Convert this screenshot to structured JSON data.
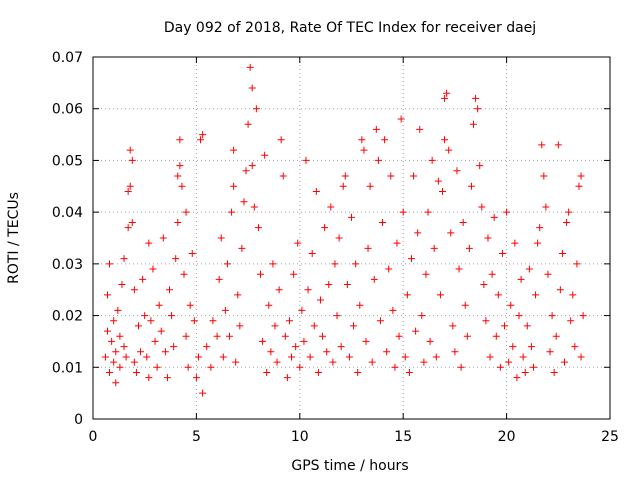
{
  "chart_data": {
    "type": "scatter",
    "title": "Day 092 of 2018, Rate Of TEC Index for receiver daej",
    "xlabel": "GPS time / hours",
    "ylabel": "ROTI / TECUs",
    "xlim": [
      0,
      25
    ],
    "ylim": [
      0,
      0.07
    ],
    "xticks": [
      0,
      5,
      10,
      15,
      20,
      25
    ],
    "yticks": [
      0,
      0.01,
      0.02,
      0.03,
      0.04,
      0.05,
      0.06,
      0.07
    ],
    "xtick_labels": [
      "0",
      "5",
      "10",
      "15",
      "20",
      "25"
    ],
    "ytick_labels": [
      "0",
      "0.01",
      "0.02",
      "0.03",
      "0.04",
      "0.05",
      "0.06",
      "0.07"
    ],
    "grid": true,
    "marker": "+",
    "color": "#ff0000",
    "series": [
      {
        "points": [
          [
            0.6,
            0.012
          ],
          [
            0.7,
            0.017
          ],
          [
            0.7,
            0.024
          ],
          [
            0.8,
            0.03
          ],
          [
            0.8,
            0.009
          ],
          [
            0.9,
            0.015
          ],
          [
            1.0,
            0.011
          ],
          [
            1.0,
            0.019
          ],
          [
            1.1,
            0.007
          ],
          [
            1.1,
            0.013
          ],
          [
            1.2,
            0.021
          ],
          [
            1.3,
            0.016
          ],
          [
            1.3,
            0.01
          ],
          [
            1.4,
            0.026
          ],
          [
            1.5,
            0.014
          ],
          [
            1.5,
            0.031
          ],
          [
            1.6,
            0.012
          ],
          [
            1.7,
            0.037
          ],
          [
            1.7,
            0.044
          ],
          [
            1.8,
            0.052
          ],
          [
            1.8,
            0.045
          ],
          [
            1.9,
            0.038
          ],
          [
            1.9,
            0.05
          ],
          [
            2.0,
            0.025
          ],
          [
            2.0,
            0.011
          ],
          [
            2.1,
            0.009
          ],
          [
            2.2,
            0.018
          ],
          [
            2.3,
            0.013
          ],
          [
            2.4,
            0.027
          ],
          [
            2.5,
            0.02
          ],
          [
            2.6,
            0.012
          ],
          [
            2.7,
            0.034
          ],
          [
            2.7,
            0.008
          ],
          [
            2.8,
            0.019
          ],
          [
            2.9,
            0.029
          ],
          [
            3.0,
            0.015
          ],
          [
            3.1,
            0.01
          ],
          [
            3.2,
            0.022
          ],
          [
            3.3,
            0.017
          ],
          [
            3.4,
            0.035
          ],
          [
            3.5,
            0.013
          ],
          [
            3.6,
            0.008
          ],
          [
            3.7,
            0.025
          ],
          [
            3.8,
            0.02
          ],
          [
            3.9,
            0.014
          ],
          [
            4.0,
            0.031
          ],
          [
            4.1,
            0.038
          ],
          [
            4.1,
            0.047
          ],
          [
            4.2,
            0.054
          ],
          [
            4.2,
            0.049
          ],
          [
            4.3,
            0.045
          ],
          [
            4.4,
            0.028
          ],
          [
            4.5,
            0.016
          ],
          [
            4.5,
            0.04
          ],
          [
            4.6,
            0.01
          ],
          [
            4.7,
            0.022
          ],
          [
            4.8,
            0.032
          ],
          [
            4.9,
            0.019
          ],
          [
            5.0,
            0.008
          ],
          [
            5.1,
            0.012
          ],
          [
            5.2,
            0.054
          ],
          [
            5.3,
            0.055
          ],
          [
            5.3,
            0.005
          ],
          [
            5.5,
            0.014
          ],
          [
            5.7,
            0.01
          ],
          [
            5.8,
            0.019
          ],
          [
            6.0,
            0.016
          ],
          [
            6.1,
            0.027
          ],
          [
            6.2,
            0.035
          ],
          [
            6.3,
            0.012
          ],
          [
            6.4,
            0.021
          ],
          [
            6.5,
            0.03
          ],
          [
            6.6,
            0.016
          ],
          [
            6.7,
            0.04
          ],
          [
            6.8,
            0.052
          ],
          [
            6.8,
            0.045
          ],
          [
            6.9,
            0.011
          ],
          [
            7.0,
            0.024
          ],
          [
            7.1,
            0.018
          ],
          [
            7.2,
            0.033
          ],
          [
            7.3,
            0.042
          ],
          [
            7.4,
            0.048
          ],
          [
            7.5,
            0.057
          ],
          [
            7.6,
            0.068
          ],
          [
            7.7,
            0.064
          ],
          [
            7.7,
            0.049
          ],
          [
            7.8,
            0.041
          ],
          [
            7.9,
            0.06
          ],
          [
            8.0,
            0.037
          ],
          [
            8.1,
            0.028
          ],
          [
            8.2,
            0.015
          ],
          [
            8.3,
            0.051
          ],
          [
            8.4,
            0.009
          ],
          [
            8.5,
            0.022
          ],
          [
            8.6,
            0.013
          ],
          [
            8.7,
            0.03
          ],
          [
            8.8,
            0.018
          ],
          [
            8.9,
            0.011
          ],
          [
            9.0,
            0.025
          ],
          [
            9.1,
            0.054
          ],
          [
            9.2,
            0.047
          ],
          [
            9.3,
            0.016
          ],
          [
            9.4,
            0.008
          ],
          [
            9.5,
            0.019
          ],
          [
            9.6,
            0.012
          ],
          [
            9.7,
            0.028
          ],
          [
            9.8,
            0.014
          ],
          [
            9.9,
            0.034
          ],
          [
            10.0,
            0.01
          ],
          [
            10.1,
            0.021
          ],
          [
            10.2,
            0.015
          ],
          [
            10.3,
            0.05
          ],
          [
            10.4,
            0.025
          ],
          [
            10.5,
            0.012
          ],
          [
            10.6,
            0.032
          ],
          [
            10.7,
            0.018
          ],
          [
            10.8,
            0.044
          ],
          [
            10.9,
            0.009
          ],
          [
            11.0,
            0.023
          ],
          [
            11.1,
            0.016
          ],
          [
            11.2,
            0.037
          ],
          [
            11.3,
            0.013
          ],
          [
            11.4,
            0.026
          ],
          [
            11.5,
            0.041
          ],
          [
            11.6,
            0.011
          ],
          [
            11.7,
            0.03
          ],
          [
            11.8,
            0.02
          ],
          [
            11.9,
            0.035
          ],
          [
            12.0,
            0.014
          ],
          [
            12.1,
            0.045
          ],
          [
            12.2,
            0.047
          ],
          [
            12.3,
            0.026
          ],
          [
            12.4,
            0.012
          ],
          [
            12.5,
            0.039
          ],
          [
            12.6,
            0.018
          ],
          [
            12.7,
            0.03
          ],
          [
            12.8,
            0.009
          ],
          [
            12.9,
            0.022
          ],
          [
            13.0,
            0.054
          ],
          [
            13.1,
            0.052
          ],
          [
            13.2,
            0.015
          ],
          [
            13.3,
            0.033
          ],
          [
            13.4,
            0.045
          ],
          [
            13.5,
            0.011
          ],
          [
            13.6,
            0.027
          ],
          [
            13.7,
            0.056
          ],
          [
            13.8,
            0.05
          ],
          [
            13.9,
            0.019
          ],
          [
            14.0,
            0.038
          ],
          [
            14.1,
            0.054
          ],
          [
            14.2,
            0.013
          ],
          [
            14.3,
            0.029
          ],
          [
            14.4,
            0.047
          ],
          [
            14.5,
            0.021
          ],
          [
            14.6,
            0.01
          ],
          [
            14.7,
            0.034
          ],
          [
            14.8,
            0.016
          ],
          [
            14.9,
            0.058
          ],
          [
            15.0,
            0.04
          ],
          [
            15.1,
            0.012
          ],
          [
            15.2,
            0.024
          ],
          [
            15.3,
            0.009
          ],
          [
            15.4,
            0.031
          ],
          [
            15.5,
            0.047
          ],
          [
            15.6,
            0.017
          ],
          [
            15.7,
            0.036
          ],
          [
            15.8,
            0.056
          ],
          [
            15.9,
            0.02
          ],
          [
            16.0,
            0.011
          ],
          [
            16.1,
            0.028
          ],
          [
            16.2,
            0.04
          ],
          [
            16.3,
            0.015
          ],
          [
            16.4,
            0.05
          ],
          [
            16.5,
            0.033
          ],
          [
            16.6,
            0.012
          ],
          [
            16.7,
            0.046
          ],
          [
            16.8,
            0.024
          ],
          [
            16.9,
            0.044
          ],
          [
            17.0,
            0.054
          ],
          [
            17.0,
            0.062
          ],
          [
            17.1,
            0.063
          ],
          [
            17.2,
            0.052
          ],
          [
            17.3,
            0.036
          ],
          [
            17.4,
            0.018
          ],
          [
            17.5,
            0.013
          ],
          [
            17.6,
            0.048
          ],
          [
            17.7,
            0.029
          ],
          [
            17.8,
            0.01
          ],
          [
            17.9,
            0.038
          ],
          [
            18.0,
            0.022
          ],
          [
            18.1,
            0.016
          ],
          [
            18.2,
            0.033
          ],
          [
            18.3,
            0.045
          ],
          [
            18.4,
            0.057
          ],
          [
            18.5,
            0.062
          ],
          [
            18.6,
            0.06
          ],
          [
            18.7,
            0.049
          ],
          [
            18.8,
            0.041
          ],
          [
            18.9,
            0.026
          ],
          [
            19.0,
            0.019
          ],
          [
            19.1,
            0.035
          ],
          [
            19.2,
            0.012
          ],
          [
            19.3,
            0.028
          ],
          [
            19.4,
            0.039
          ],
          [
            19.5,
            0.016
          ],
          [
            19.6,
            0.024
          ],
          [
            19.7,
            0.01
          ],
          [
            19.8,
            0.032
          ],
          [
            19.9,
            0.018
          ],
          [
            20.0,
            0.04
          ],
          [
            20.1,
            0.011
          ],
          [
            20.2,
            0.022
          ],
          [
            20.3,
            0.014
          ],
          [
            20.4,
            0.034
          ],
          [
            20.5,
            0.008
          ],
          [
            20.6,
            0.02
          ],
          [
            20.7,
            0.027
          ],
          [
            20.8,
            0.012
          ],
          [
            20.9,
            0.009
          ],
          [
            21.0,
            0.018
          ],
          [
            21.1,
            0.029
          ],
          [
            21.2,
            0.014
          ],
          [
            21.3,
            0.01
          ],
          [
            21.4,
            0.024
          ],
          [
            21.5,
            0.034
          ],
          [
            21.6,
            0.037
          ],
          [
            21.7,
            0.053
          ],
          [
            21.8,
            0.047
          ],
          [
            21.9,
            0.041
          ],
          [
            22.0,
            0.028
          ],
          [
            22.1,
            0.013
          ],
          [
            22.2,
            0.02
          ],
          [
            22.3,
            0.009
          ],
          [
            22.4,
            0.016
          ],
          [
            22.5,
            0.053
          ],
          [
            22.6,
            0.025
          ],
          [
            22.7,
            0.032
          ],
          [
            22.8,
            0.011
          ],
          [
            22.9,
            0.038
          ],
          [
            23.0,
            0.04
          ],
          [
            23.1,
            0.019
          ],
          [
            23.2,
            0.024
          ],
          [
            23.3,
            0.014
          ],
          [
            23.4,
            0.03
          ],
          [
            23.5,
            0.045
          ],
          [
            23.6,
            0.047
          ],
          [
            23.6,
            0.012
          ],
          [
            23.7,
            0.02
          ]
        ]
      }
    ]
  }
}
